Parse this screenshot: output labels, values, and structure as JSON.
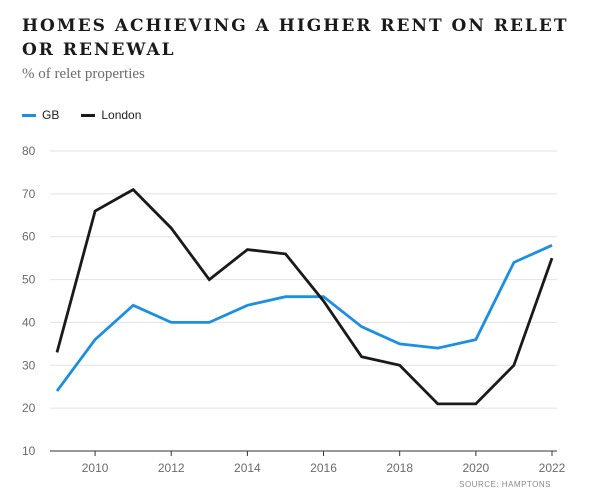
{
  "chart_data": {
    "type": "line",
    "title": "HOMES ACHIEVING A HIGHER RENT ON RELET OR RENEWAL",
    "subtitle": "% of relet properties",
    "x": [
      2009,
      2010,
      2011,
      2012,
      2013,
      2014,
      2015,
      2016,
      2017,
      2018,
      2019,
      2020,
      2021,
      2022
    ],
    "x_ticks": [
      2010,
      2012,
      2014,
      2016,
      2018,
      2020,
      2022
    ],
    "y_ticks": [
      10,
      20,
      30,
      40,
      50,
      60,
      70,
      80
    ],
    "xlim": [
      2009,
      2022
    ],
    "ylim": [
      10,
      80
    ],
    "grid": true,
    "legend_position": "top-left",
    "series": [
      {
        "name": "GB",
        "color": "#1c8fe3",
        "values": [
          24,
          36,
          44,
          40,
          40,
          44,
          46,
          46,
          39,
          35,
          34,
          36,
          54,
          58
        ]
      },
      {
        "name": "London",
        "color": "#1a1a1a",
        "values": [
          33,
          66,
          71,
          62,
          50,
          57,
          56,
          45,
          32,
          30,
          21,
          21,
          30,
          55
        ]
      }
    ],
    "source": "SOURCE: HAMPTONS"
  }
}
